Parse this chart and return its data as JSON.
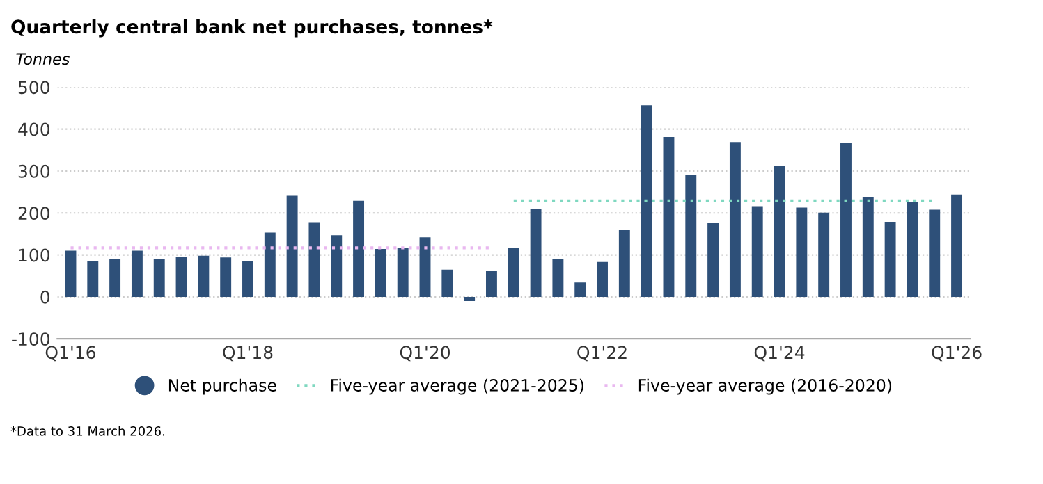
{
  "chart_data": {
    "type": "bar",
    "title": "Quarterly central bank net purchases, tonnes*",
    "ylabel": "Tonnes",
    "categories": [
      "Q1'16",
      null,
      null,
      null,
      null,
      null,
      null,
      null,
      "Q1'18",
      null,
      null,
      null,
      null,
      null,
      null,
      null,
      "Q1'20",
      null,
      null,
      null,
      null,
      null,
      null,
      null,
      "Q1'22",
      null,
      null,
      null,
      null,
      null,
      null,
      null,
      "Q1'24",
      null,
      null,
      null,
      null,
      null,
      null,
      null,
      "Q1'26"
    ],
    "series": [
      {
        "name": "Net purchase",
        "color": "#2e5079",
        "values": [
          110,
          85,
          90,
          110,
          91,
          95,
          98,
          94,
          85,
          153,
          241,
          178,
          147,
          229,
          114,
          117,
          142,
          65,
          -10,
          62,
          116,
          209,
          90,
          34,
          83,
          159,
          457,
          381,
          290,
          177,
          369,
          216,
          313,
          213,
          201,
          366,
          237,
          179,
          226,
          208,
          244
        ]
      },
      {
        "name": "Five-year average (2021-2025)",
        "color": "#7fd8c0",
        "type": "line",
        "line_style": "dotted",
        "values": [
          null,
          null,
          null,
          null,
          null,
          null,
          null,
          null,
          null,
          null,
          null,
          null,
          null,
          null,
          null,
          null,
          null,
          null,
          null,
          null,
          229,
          229,
          229,
          229,
          229,
          229,
          229,
          229,
          229,
          229,
          229,
          229,
          229,
          229,
          229,
          229,
          229,
          229,
          229,
          229,
          null
        ]
      },
      {
        "name": "Five-year average (2016-2020)",
        "color": "#e9b8f0",
        "type": "line",
        "line_style": "dotted",
        "values": [
          117,
          117,
          117,
          117,
          117,
          117,
          117,
          117,
          117,
          117,
          117,
          117,
          117,
          117,
          117,
          117,
          117,
          117,
          117,
          117,
          null,
          null,
          null,
          null,
          null,
          null,
          null,
          null,
          null,
          null,
          null,
          null,
          null,
          null,
          null,
          null,
          null,
          null,
          null,
          null,
          null
        ]
      }
    ],
    "ylim": [
      -100,
      500
    ],
    "yticks": [
      -100,
      0,
      100,
      200,
      300,
      400,
      500
    ],
    "grid": "y",
    "legend": "bottom",
    "annotations": [
      "*Data to 31 March 2026."
    ]
  }
}
